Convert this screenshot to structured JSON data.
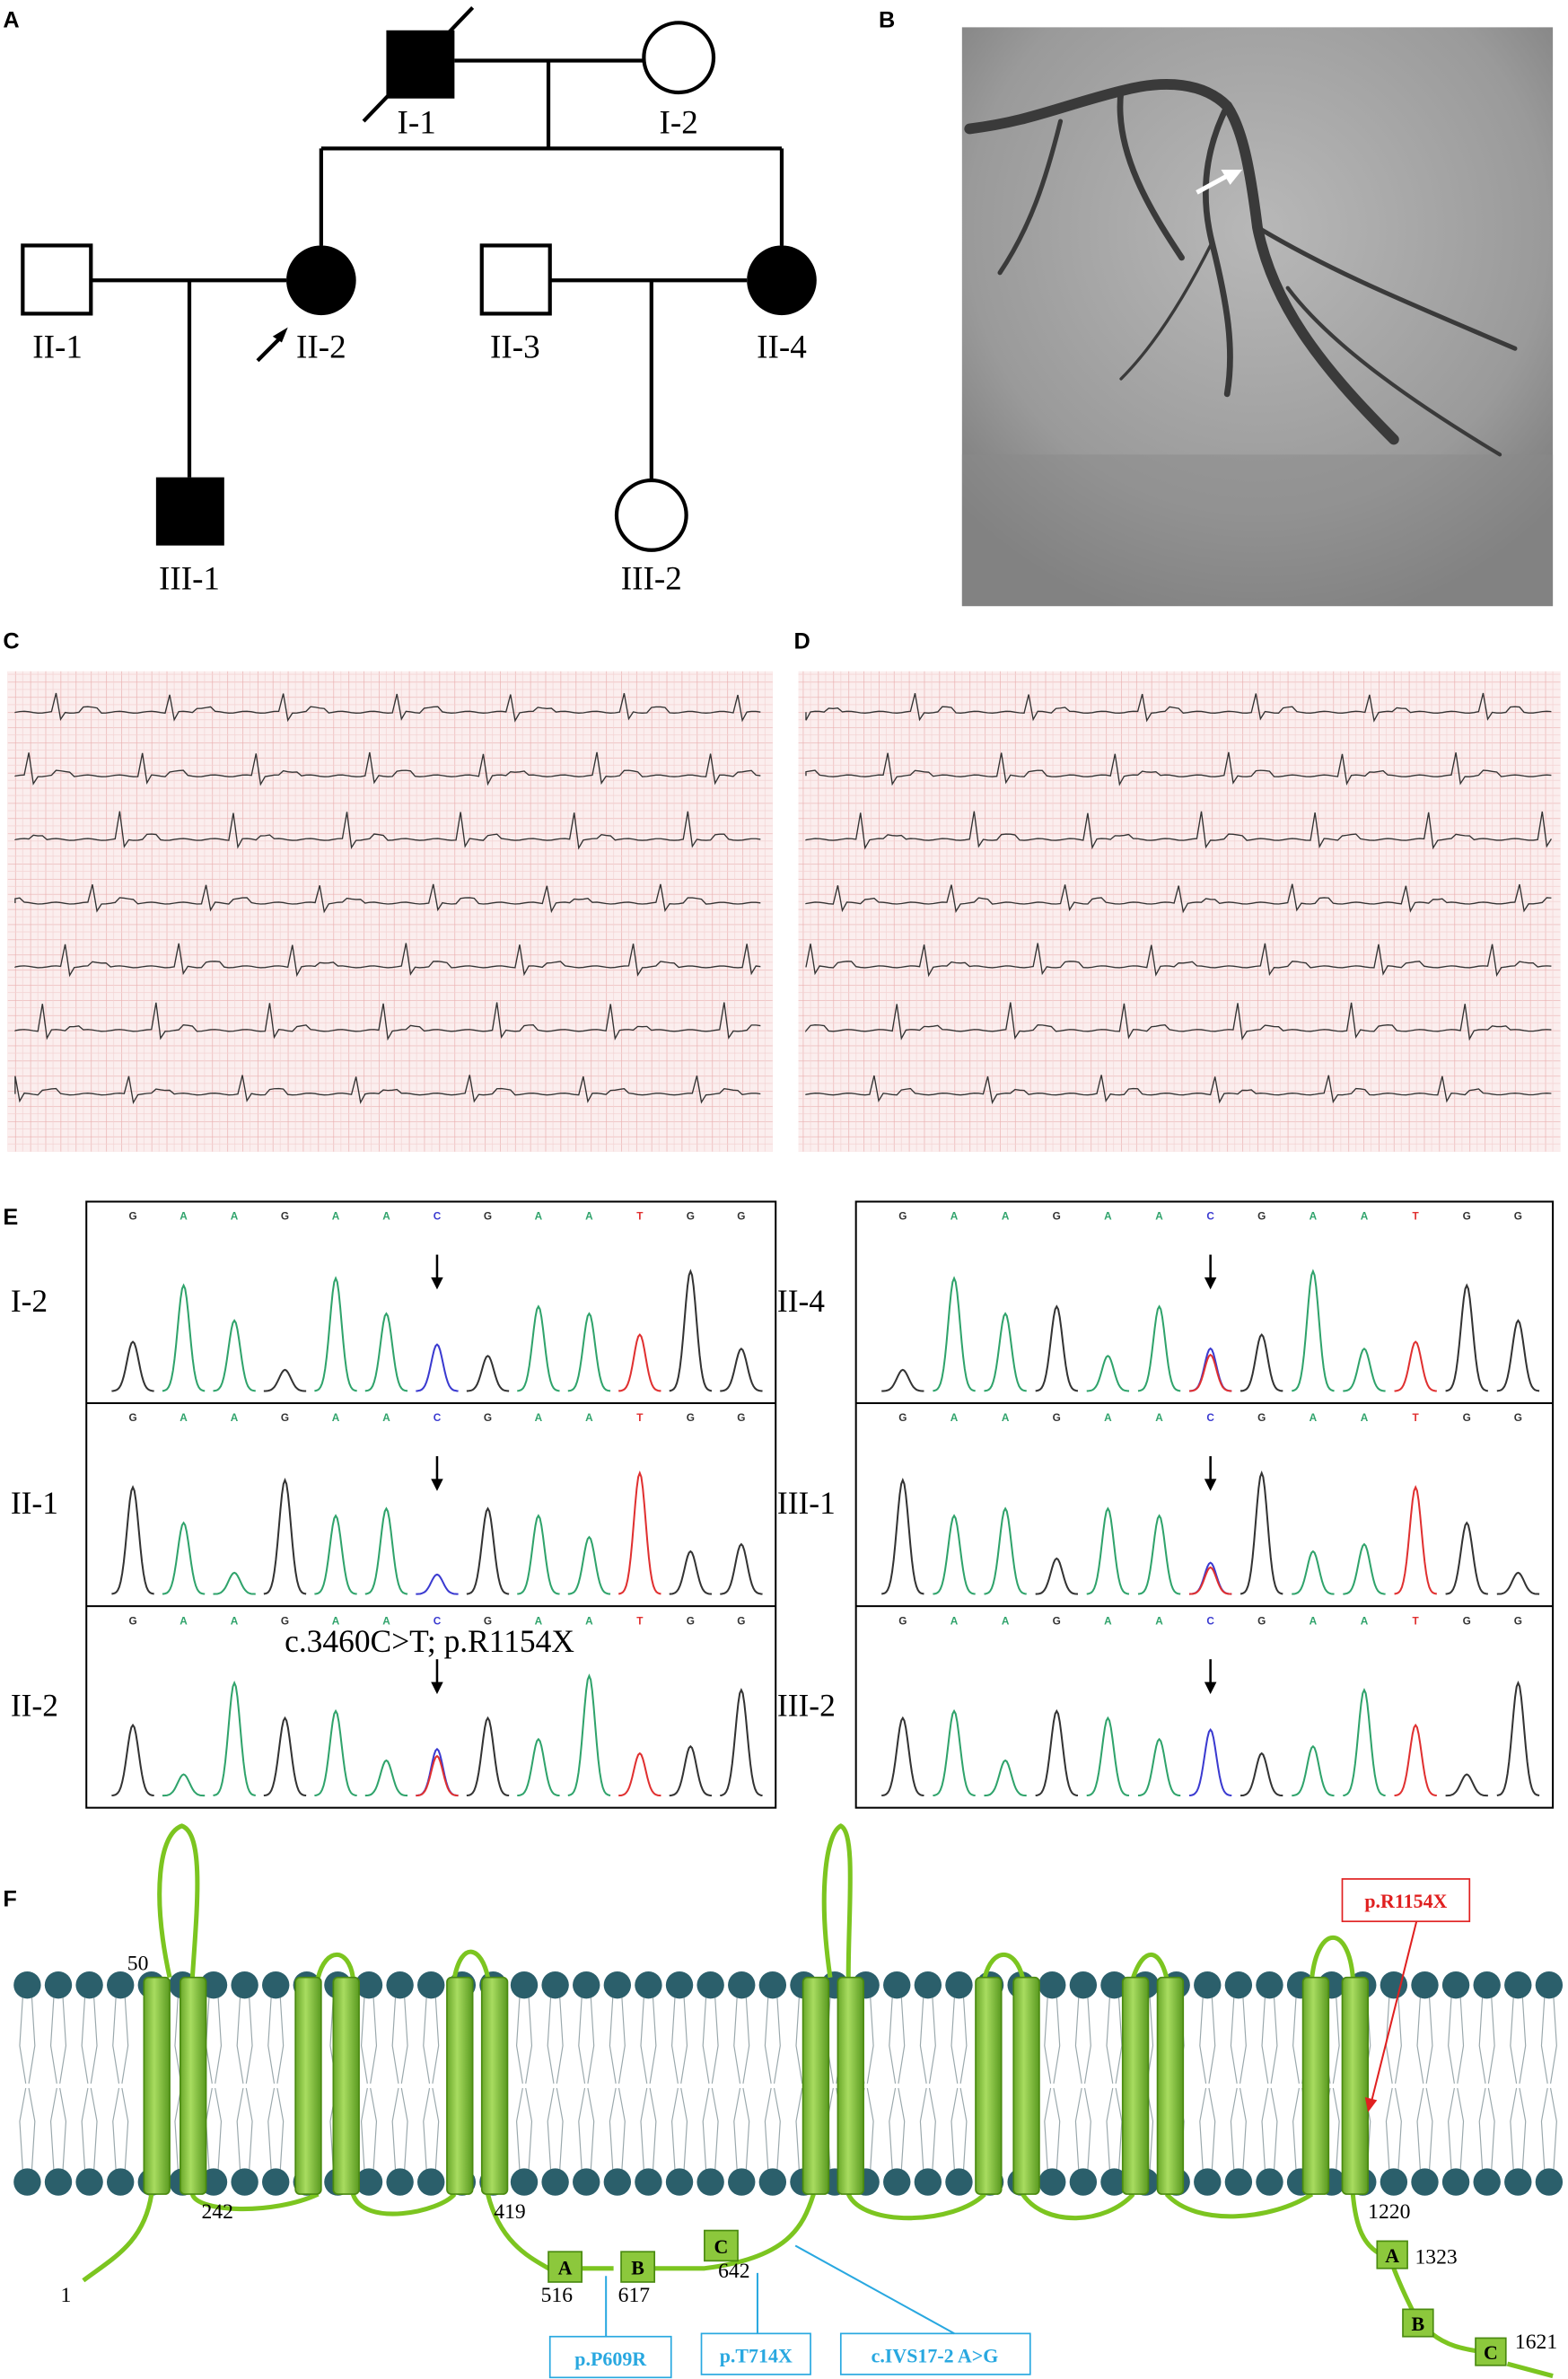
{
  "panel_labels": [
    "A",
    "B",
    "C",
    "D",
    "E",
    "F"
  ],
  "pedigree": {
    "labels": [
      "I-1",
      "I-2",
      "II-1",
      "II-2",
      "II-3",
      "II-4",
      "III-1",
      "III-2"
    ]
  },
  "chromatograms": {
    "sequence": [
      "G",
      "A",
      "A",
      "G",
      "A",
      "A",
      "C",
      "G",
      "A",
      "A",
      "T",
      "G",
      "G"
    ],
    "samples": [
      "I-2",
      "II-1",
      "II-2",
      "II-4",
      "III-1",
      "III-2"
    ],
    "annotation": "c.3460C>T; p.R1154X"
  },
  "protein": {
    "positions": [
      50,
      242,
      419,
      1220,
      1,
      516,
      617,
      642,
      1323,
      1621
    ],
    "domains": [
      "A",
      "B",
      "C",
      "A",
      "B",
      "C"
    ],
    "mutations": [
      "p.R1154X",
      "p.P609R",
      "p.T714X",
      "c.IVS17-2 A>G"
    ]
  }
}
